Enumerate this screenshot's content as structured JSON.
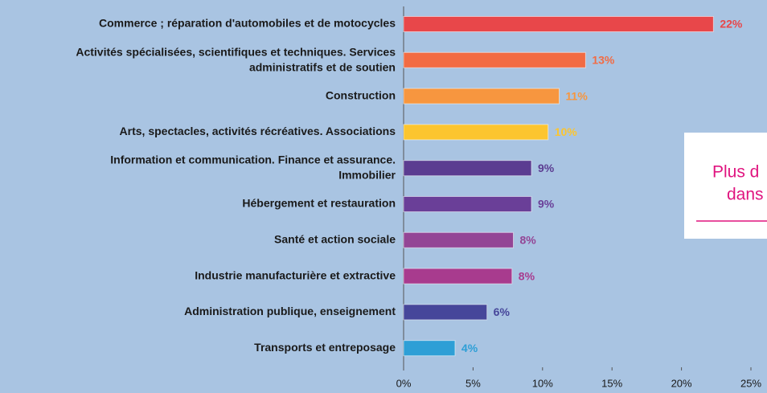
{
  "chart_data": {
    "type": "bar",
    "orientation": "horizontal",
    "categories": [
      "Commerce ; réparation d'automobiles et de motocycles",
      "Activités spécialisées, scientifiques et techniques. Services\nadministratifs et de soutien",
      "Construction",
      "Arts, spectacles, activités récréatives. Associations",
      "Information et communication. Finance et assurance.\nImmobilier",
      "Hébergement et restauration",
      "Santé et action sociale",
      "Industrie manufacturière et extractive",
      "Administration publique, enseignement",
      "Transports et entreposage"
    ],
    "values": [
      22.3,
      13.1,
      11.2,
      10.4,
      9.2,
      9.2,
      7.9,
      7.8,
      6.0,
      3.7
    ],
    "value_labels": [
      "22%",
      "13%",
      "11%",
      "10%",
      "9%",
      "9%",
      "8%",
      "8%",
      "6%",
      "4%"
    ],
    "colors": [
      "#e8474a",
      "#f26b43",
      "#f7963f",
      "#fcc52f",
      "#5b3c91",
      "#6a3f98",
      "#934595",
      "#a83b8e",
      "#46469a",
      "#2e9fd6"
    ],
    "xlim": [
      0,
      25
    ],
    "xticks": [
      {
        "value": 0,
        "label": "0%"
      },
      {
        "value": 5,
        "label": "5%"
      },
      {
        "value": 10,
        "label": "10%"
      },
      {
        "value": 15,
        "label": "15%"
      },
      {
        "value": 20,
        "label": "20%"
      },
      {
        "value": 25,
        "label": "25%"
      }
    ],
    "annotations": [
      "Plus d",
      "dans"
    ]
  }
}
